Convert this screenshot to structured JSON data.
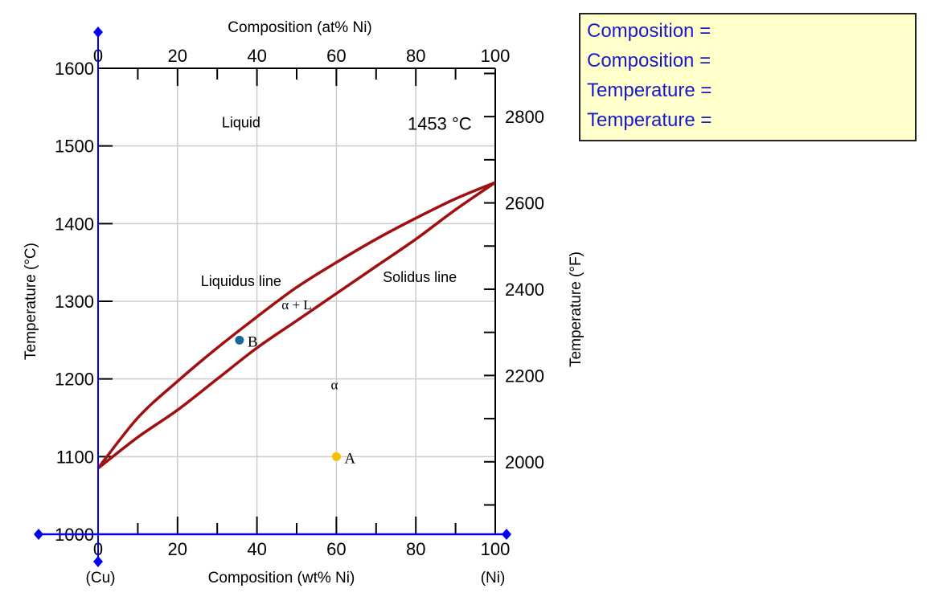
{
  "info_panel": {
    "lines": [
      "Composition =",
      "Composition =",
      "Temperature =",
      "Temperature ="
    ]
  },
  "chart_data": {
    "type": "line",
    "title": "",
    "xlabel": "Composition (wt% Ni)",
    "x2label": "Composition (at% Ni)",
    "ylabel": "Temperature (°C)",
    "y2label": "Temperature (°F)",
    "xlim": [
      0,
      100
    ],
    "ylim": [
      1000,
      1600
    ],
    "y2lim": [
      1832,
      2912
    ],
    "xticks": [
      0,
      20,
      40,
      60,
      80,
      100
    ],
    "x2ticks": [
      0,
      20,
      40,
      60,
      80,
      100
    ],
    "yticks": [
      1000,
      1100,
      1200,
      1300,
      1400,
      1500,
      1600
    ],
    "y2ticks": [
      2000,
      2200,
      2400,
      2600,
      2800
    ],
    "grid": true,
    "endpoint_labels": {
      "left": "(Cu)",
      "right": "(Ni)"
    },
    "series": [
      {
        "name": "Liquidus line",
        "color": "#a01010",
        "x": [
          0,
          10,
          20,
          30,
          40,
          50,
          60,
          70,
          80,
          90,
          100
        ],
        "y": [
          1085,
          1150,
          1197,
          1240,
          1280,
          1318,
          1350,
          1380,
          1407,
          1432,
          1453
        ]
      },
      {
        "name": "Solidus line",
        "color": "#a01010",
        "x": [
          0,
          10,
          20,
          30,
          40,
          50,
          60,
          70,
          80,
          90,
          100
        ],
        "y": [
          1085,
          1125,
          1160,
          1200,
          1240,
          1275,
          1310,
          1345,
          1380,
          1418,
          1453
        ]
      }
    ],
    "points": [
      {
        "label": "A",
        "x": 60,
        "y": 1100,
        "color": "#f5c000"
      },
      {
        "label": "B",
        "x": 35.6,
        "y": 1250,
        "color": "#17679a"
      }
    ],
    "annotations": [
      {
        "text": "Liquid",
        "x": 36,
        "y": 1530
      },
      {
        "text": "1453 °C",
        "x": 86,
        "y": 1527
      },
      {
        "text": "Liquidus line",
        "x": 36,
        "y": 1326
      },
      {
        "text": "Solidus line",
        "x": 81,
        "y": 1331
      },
      {
        "text": "α + L",
        "x": 50,
        "y": 1296
      },
      {
        "text": "α",
        "x": 59.5,
        "y": 1193
      }
    ],
    "cursor_color": "#0000ee"
  }
}
